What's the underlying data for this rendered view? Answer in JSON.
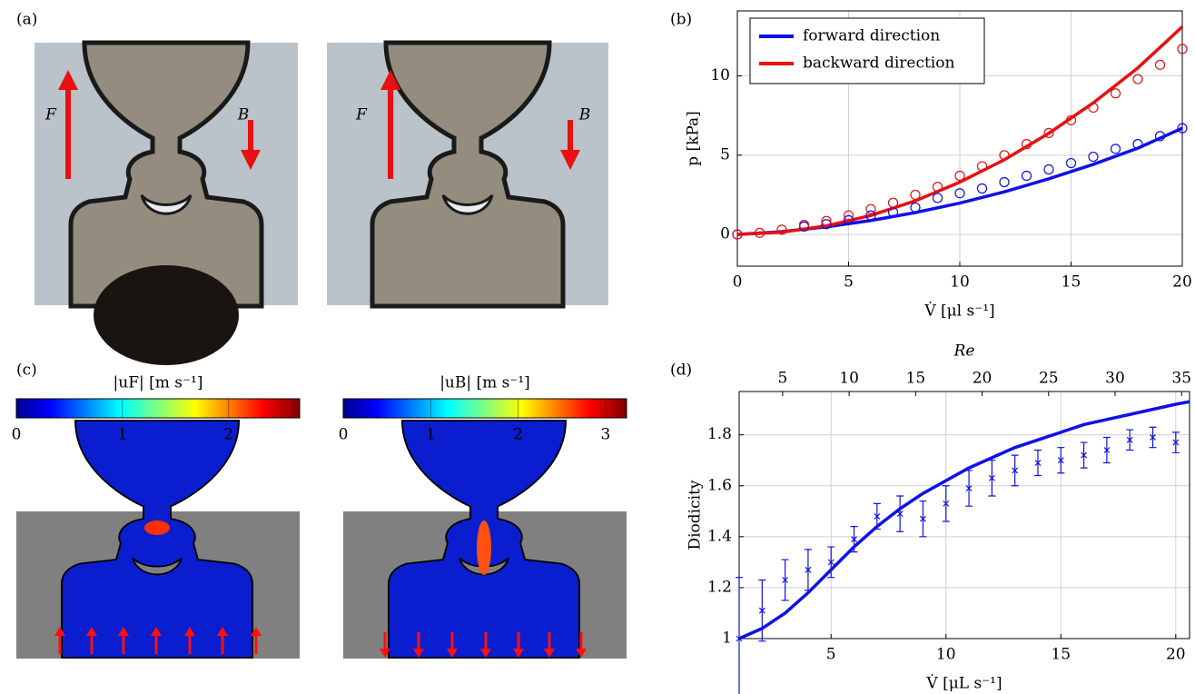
{
  "labels": [
    "(a)",
    "(b)",
    "(c)",
    "(d)"
  ],
  "photo_labels": [
    [
      "F",
      "B"
    ],
    [
      "F",
      "B"
    ]
  ],
  "colorbars": [
    {
      "title": "|uF| [m s⁻¹]",
      "lim": [
        0,
        2.67
      ],
      "ticks": [
        0,
        1,
        2
      ]
    },
    {
      "title": "|uB| [m s⁻¹]",
      "lim": [
        0,
        3.24
      ],
      "ticks": [
        0,
        1,
        2,
        3
      ]
    }
  ],
  "chart_data": [
    {
      "type": "line",
      "xlabel": "V̇ [μl s⁻¹]",
      "ylabel": "p [kPa]",
      "xlim": [
        0,
        20
      ],
      "ylim": [
        -2,
        14.1
      ],
      "xticks": [
        0,
        5,
        10,
        15,
        20
      ],
      "yticks": [
        0,
        5,
        10
      ],
      "grid": true,
      "legend": "upper left",
      "series": [
        {
          "name": "forward direction",
          "color": "#1010e8",
          "x": [
            0,
            2,
            4,
            6,
            8,
            10,
            12,
            14,
            16,
            18,
            20
          ],
          "values": [
            0,
            0.18,
            0.48,
            0.88,
            1.38,
            1.98,
            2.69,
            3.51,
            4.42,
            5.44,
            6.7
          ]
        },
        {
          "name": "backward direction",
          "color": "#e81010",
          "x": [
            0,
            2,
            4,
            6,
            8,
            10,
            12,
            14,
            16,
            18,
            20
          ],
          "values": [
            0,
            0.14,
            0.54,
            1.2,
            2.12,
            3.3,
            4.71,
            6.38,
            8.3,
            10.5,
            13.1
          ]
        }
      ],
      "markers": [
        {
          "marker": "circle",
          "color": "#1010e8",
          "x": [
            0,
            3,
            4,
            5,
            6,
            7,
            8,
            9,
            10,
            11,
            12,
            13,
            14,
            15,
            16,
            17,
            18,
            19,
            20
          ],
          "values": [
            0,
            0.5,
            0.65,
            0.9,
            1.2,
            1.4,
            1.7,
            2.3,
            2.6,
            2.9,
            3.3,
            3.7,
            4.1,
            4.5,
            4.9,
            5.4,
            5.7,
            6.2,
            6.7
          ]
        },
        {
          "marker": "circle",
          "color": "#e81010",
          "x": [
            0,
            1,
            2,
            3,
            4,
            5,
            6,
            7,
            8,
            9,
            10,
            11,
            12,
            13,
            14,
            15,
            16,
            17,
            18,
            19,
            20
          ],
          "values": [
            0,
            0.1,
            0.3,
            0.6,
            0.85,
            1.2,
            1.6,
            2.0,
            2.5,
            3.0,
            3.7,
            4.3,
            5.0,
            5.7,
            6.4,
            7.2,
            8.0,
            8.9,
            9.8,
            10.7,
            11.7
          ]
        }
      ]
    },
    {
      "type": "line",
      "xlabel": "V̇ [μL s⁻¹]",
      "ylabel": "Diodicity",
      "x2label": "Re",
      "xlim": [
        1,
        20.6
      ],
      "ylim": [
        1,
        1.97
      ],
      "xticks": [
        5,
        10,
        15,
        20
      ],
      "yticks": [
        1,
        1.2,
        1.4,
        1.6,
        1.8
      ],
      "x2lim": [
        1.73,
        35.6
      ],
      "x2ticks": [
        5,
        10,
        15,
        20,
        25,
        30,
        35
      ],
      "grid": true,
      "series": [
        {
          "color": "#1010e8",
          "x": [
            1,
            2,
            3,
            4,
            5,
            6,
            7,
            8,
            9,
            10,
            11,
            12,
            13,
            14,
            15,
            16,
            17,
            18,
            19,
            20,
            20.6
          ],
          "values": [
            1.0,
            1.04,
            1.1,
            1.18,
            1.27,
            1.36,
            1.44,
            1.51,
            1.57,
            1.62,
            1.67,
            1.71,
            1.75,
            1.78,
            1.81,
            1.84,
            1.86,
            1.88,
            1.9,
            1.92,
            1.93
          ]
        }
      ],
      "markers": [
        {
          "marker": "cross",
          "color": "#1010e8",
          "x": [
            1,
            2,
            3,
            4,
            5,
            6,
            7,
            8,
            9,
            10,
            11,
            12,
            13,
            14,
            15,
            16,
            17,
            18,
            19,
            20
          ],
          "values": [
            1.0,
            1.11,
            1.23,
            1.27,
            1.3,
            1.39,
            1.48,
            1.49,
            1.47,
            1.53,
            1.59,
            1.63,
            1.66,
            1.69,
            1.7,
            1.72,
            1.74,
            1.78,
            1.79,
            1.77
          ],
          "errors": [
            0.24,
            0.12,
            0.08,
            0.08,
            0.06,
            0.05,
            0.05,
            0.07,
            0.07,
            0.07,
            0.07,
            0.07,
            0.06,
            0.05,
            0.05,
            0.05,
            0.05,
            0.04,
            0.04,
            0.04
          ]
        }
      ]
    }
  ]
}
